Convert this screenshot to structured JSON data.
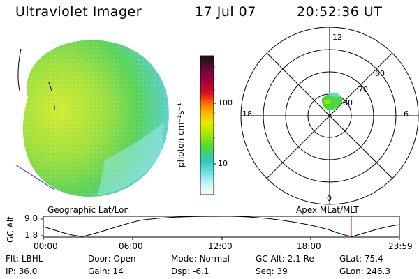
{
  "header": {
    "instrument": "Ultraviolet Imager",
    "date": "17 Jul 07",
    "time": "20:52:36 UT"
  },
  "colorbar": {
    "label": "photon cm⁻²s⁻¹",
    "ticks": [
      "100",
      "10"
    ],
    "colors": [
      "#141414",
      "#3a0a2a",
      "#6e0a3a",
      "#a0003a",
      "#d81020",
      "#ff6a00",
      "#ffb000",
      "#e8e800",
      "#a8e800",
      "#4ad840",
      "#30c8c0",
      "#70e0e8",
      "#c8f4f4",
      "#f4fcfc"
    ]
  },
  "polar_plot": {
    "mlt_labels": [
      "12",
      "18",
      "6",
      "0"
    ],
    "lat_labels": [
      "60",
      "70",
      "80"
    ]
  },
  "timeline": {
    "left_title": "Geographic Lat/Lon",
    "right_title": "Apex MLat/MLT",
    "ylabel": "GC Alt",
    "ymax": "9.0",
    "ymin": "1.8",
    "time_ticks": [
      "00:00",
      "06:00",
      "12:00",
      "18:00",
      "23:59"
    ],
    "marker_color": "#c00000"
  },
  "info": {
    "row1": [
      {
        "label": "Flt:",
        "value": "LBHL"
      },
      {
        "label": "Door:",
        "value": "Open"
      },
      {
        "label": "Mode:",
        "value": "Normal"
      },
      {
        "label": "GC Alt:",
        "value": "2.1 Re"
      },
      {
        "label": "GLat:",
        "value": "75.4"
      }
    ],
    "row2": [
      {
        "label": "IP:",
        "value": "36.0"
      },
      {
        "label": "Gain:",
        "value": "14"
      },
      {
        "label": "Dsp:",
        "value": "-6.1"
      },
      {
        "label": "Seq:",
        "value": "39"
      },
      {
        "label": "GLon:",
        "value": "246.3"
      }
    ]
  }
}
